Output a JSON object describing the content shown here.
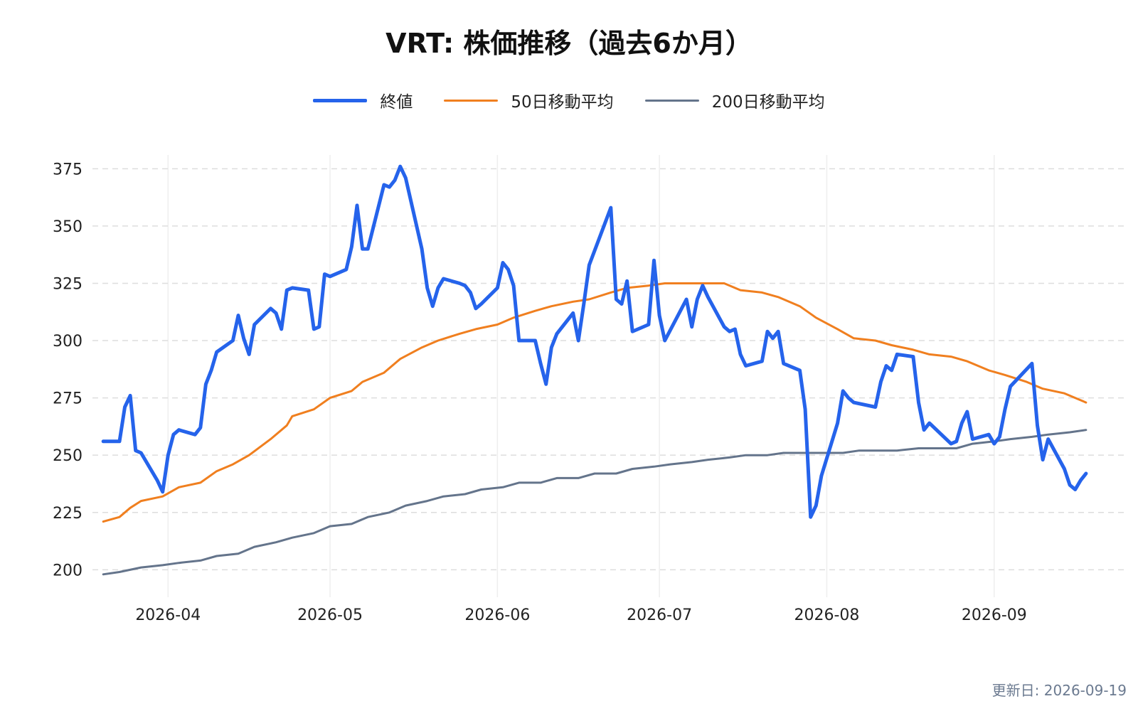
{
  "chart_data": {
    "type": "line",
    "title": "VRT: 株価推移（過去6か月）",
    "xlabel": "",
    "ylabel": "",
    "ylim": [
      188,
      381
    ],
    "yticks": [
      200,
      225,
      250,
      275,
      300,
      325,
      350,
      375
    ],
    "xlim": [
      "2026-03-18",
      "2026-09-25"
    ],
    "xticks": [
      "2026-04-01",
      "2026-05-01",
      "2026-06-01",
      "2026-07-01",
      "2026-08-01",
      "2026-09-01"
    ],
    "xtick_labels": [
      "2026-04",
      "2026-05",
      "2026-06",
      "2026-07",
      "2026-08",
      "2026-09"
    ],
    "grid": true,
    "legend_placement": "top-center",
    "series": [
      {
        "name": "終値",
        "color": "#2563eb",
        "width": 5,
        "points": [
          [
            "2026-03-20",
            256
          ],
          [
            "2026-03-23",
            256
          ],
          [
            "2026-03-24",
            271
          ],
          [
            "2026-03-25",
            276
          ],
          [
            "2026-03-26",
            252
          ],
          [
            "2026-03-27",
            251
          ],
          [
            "2026-03-30",
            239
          ],
          [
            "2026-03-31",
            234
          ],
          [
            "2026-04-01",
            250
          ],
          [
            "2026-04-02",
            259
          ],
          [
            "2026-04-03",
            261
          ],
          [
            "2026-04-06",
            259
          ],
          [
            "2026-04-07",
            262
          ],
          [
            "2026-04-08",
            281
          ],
          [
            "2026-04-09",
            287
          ],
          [
            "2026-04-10",
            295
          ],
          [
            "2026-04-13",
            300
          ],
          [
            "2026-04-14",
            311
          ],
          [
            "2026-04-15",
            301
          ],
          [
            "2026-04-16",
            294
          ],
          [
            "2026-04-17",
            307
          ],
          [
            "2026-04-20",
            314
          ],
          [
            "2026-04-21",
            312
          ],
          [
            "2026-04-22",
            305
          ],
          [
            "2026-04-23",
            322
          ],
          [
            "2026-04-24",
            323
          ],
          [
            "2026-04-27",
            322
          ],
          [
            "2026-04-28",
            305
          ],
          [
            "2026-04-29",
            306
          ],
          [
            "2026-04-30",
            329
          ],
          [
            "2026-05-01",
            328
          ],
          [
            "2026-05-04",
            331
          ],
          [
            "2026-05-05",
            341
          ],
          [
            "2026-05-06",
            359
          ],
          [
            "2026-05-07",
            340
          ],
          [
            "2026-05-08",
            340
          ],
          [
            "2026-05-11",
            368
          ],
          [
            "2026-05-12",
            367
          ],
          [
            "2026-05-13",
            370
          ],
          [
            "2026-05-14",
            376
          ],
          [
            "2026-05-15",
            371
          ],
          [
            "2026-05-18",
            340
          ],
          [
            "2026-05-19",
            323
          ],
          [
            "2026-05-20",
            315
          ],
          [
            "2026-05-21",
            323
          ],
          [
            "2026-05-22",
            327
          ],
          [
            "2026-05-25",
            325
          ],
          [
            "2026-05-26",
            324
          ],
          [
            "2026-05-27",
            321
          ],
          [
            "2026-05-28",
            314
          ],
          [
            "2026-05-29",
            316
          ],
          [
            "2026-06-01",
            323
          ],
          [
            "2026-06-02",
            334
          ],
          [
            "2026-06-03",
            331
          ],
          [
            "2026-06-04",
            324
          ],
          [
            "2026-06-05",
            300
          ],
          [
            "2026-06-08",
            300
          ],
          [
            "2026-06-09",
            290
          ],
          [
            "2026-06-10",
            281
          ],
          [
            "2026-06-11",
            297
          ],
          [
            "2026-06-12",
            303
          ],
          [
            "2026-06-15",
            312
          ],
          [
            "2026-06-16",
            300
          ],
          [
            "2026-06-17",
            316
          ],
          [
            "2026-06-18",
            333
          ],
          [
            "2026-06-22",
            358
          ],
          [
            "2026-06-23",
            318
          ],
          [
            "2026-06-24",
            316
          ],
          [
            "2026-06-25",
            326
          ],
          [
            "2026-06-26",
            304
          ],
          [
            "2026-06-29",
            307
          ],
          [
            "2026-06-30",
            335
          ],
          [
            "2026-07-01",
            311
          ],
          [
            "2026-07-02",
            300
          ],
          [
            "2026-07-06",
            318
          ],
          [
            "2026-07-07",
            306
          ],
          [
            "2026-07-08",
            318
          ],
          [
            "2026-07-09",
            324
          ],
          [
            "2026-07-10",
            319
          ],
          [
            "2026-07-13",
            306
          ],
          [
            "2026-07-14",
            304
          ],
          [
            "2026-07-15",
            305
          ],
          [
            "2026-07-16",
            294
          ],
          [
            "2026-07-17",
            289
          ],
          [
            "2026-07-20",
            291
          ],
          [
            "2026-07-21",
            304
          ],
          [
            "2026-07-22",
            301
          ],
          [
            "2026-07-23",
            304
          ],
          [
            "2026-07-24",
            290
          ],
          [
            "2026-07-27",
            287
          ],
          [
            "2026-07-28",
            270
          ],
          [
            "2026-07-29",
            223
          ],
          [
            "2026-07-30",
            228
          ],
          [
            "2026-07-31",
            241
          ],
          [
            "2026-08-03",
            264
          ],
          [
            "2026-08-04",
            278
          ],
          [
            "2026-08-05",
            275
          ],
          [
            "2026-08-06",
            273
          ],
          [
            "2026-08-10",
            271
          ],
          [
            "2026-08-11",
            282
          ],
          [
            "2026-08-12",
            289
          ],
          [
            "2026-08-13",
            287
          ],
          [
            "2026-08-14",
            294
          ],
          [
            "2026-08-17",
            293
          ],
          [
            "2026-08-18",
            273
          ],
          [
            "2026-08-19",
            261
          ],
          [
            "2026-08-20",
            264
          ],
          [
            "2026-08-24",
            255
          ],
          [
            "2026-08-25",
            256
          ],
          [
            "2026-08-26",
            264
          ],
          [
            "2026-08-27",
            269
          ],
          [
            "2026-08-28",
            257
          ],
          [
            "2026-08-31",
            259
          ],
          [
            "2026-09-01",
            255
          ],
          [
            "2026-09-02",
            258
          ],
          [
            "2026-09-03",
            270
          ],
          [
            "2026-09-04",
            280
          ],
          [
            "2026-09-08",
            290
          ],
          [
            "2026-09-09",
            263
          ],
          [
            "2026-09-10",
            248
          ],
          [
            "2026-09-11",
            257
          ],
          [
            "2026-09-14",
            244
          ],
          [
            "2026-09-15",
            237
          ],
          [
            "2026-09-16",
            235
          ],
          [
            "2026-09-17",
            239
          ],
          [
            "2026-09-18",
            242
          ]
        ]
      },
      {
        "name": "50日移動平均",
        "color": "#f07f1f",
        "width": 3,
        "points": [
          [
            "2026-03-20",
            221
          ],
          [
            "2026-03-23",
            223
          ],
          [
            "2026-03-25",
            227
          ],
          [
            "2026-03-27",
            230
          ],
          [
            "2026-03-31",
            232
          ],
          [
            "2026-04-03",
            236
          ],
          [
            "2026-04-07",
            238
          ],
          [
            "2026-04-10",
            243
          ],
          [
            "2026-04-13",
            246
          ],
          [
            "2026-04-16",
            250
          ],
          [
            "2026-04-20",
            257
          ],
          [
            "2026-04-23",
            263
          ],
          [
            "2026-04-24",
            267
          ],
          [
            "2026-04-28",
            270
          ],
          [
            "2026-05-01",
            275
          ],
          [
            "2026-05-05",
            278
          ],
          [
            "2026-05-07",
            282
          ],
          [
            "2026-05-11",
            286
          ],
          [
            "2026-05-14",
            292
          ],
          [
            "2026-05-18",
            297
          ],
          [
            "2026-05-21",
            300
          ],
          [
            "2026-05-25",
            303
          ],
          [
            "2026-05-28",
            305
          ],
          [
            "2026-06-01",
            307
          ],
          [
            "2026-06-04",
            310
          ],
          [
            "2026-06-08",
            313
          ],
          [
            "2026-06-11",
            315
          ],
          [
            "2026-06-15",
            317
          ],
          [
            "2026-06-18",
            318
          ],
          [
            "2026-06-22",
            321
          ],
          [
            "2026-06-25",
            323
          ],
          [
            "2026-06-29",
            324
          ],
          [
            "2026-07-02",
            325
          ],
          [
            "2026-07-06",
            325
          ],
          [
            "2026-07-09",
            325
          ],
          [
            "2026-07-13",
            325
          ],
          [
            "2026-07-16",
            322
          ],
          [
            "2026-07-20",
            321
          ],
          [
            "2026-07-23",
            319
          ],
          [
            "2026-07-27",
            315
          ],
          [
            "2026-07-30",
            310
          ],
          [
            "2026-08-03",
            305
          ],
          [
            "2026-08-06",
            301
          ],
          [
            "2026-08-10",
            300
          ],
          [
            "2026-08-13",
            298
          ],
          [
            "2026-08-17",
            296
          ],
          [
            "2026-08-20",
            294
          ],
          [
            "2026-08-24",
            293
          ],
          [
            "2026-08-27",
            291
          ],
          [
            "2026-08-31",
            287
          ],
          [
            "2026-09-03",
            285
          ],
          [
            "2026-09-07",
            282
          ],
          [
            "2026-09-10",
            279
          ],
          [
            "2026-09-14",
            277
          ],
          [
            "2026-09-18",
            273
          ]
        ]
      },
      {
        "name": "200日移動平均",
        "color": "#64748b",
        "width": 3,
        "points": [
          [
            "2026-03-20",
            198
          ],
          [
            "2026-03-23",
            199
          ],
          [
            "2026-03-27",
            201
          ],
          [
            "2026-03-31",
            202
          ],
          [
            "2026-04-03",
            203
          ],
          [
            "2026-04-07",
            204
          ],
          [
            "2026-04-10",
            206
          ],
          [
            "2026-04-14",
            207
          ],
          [
            "2026-04-17",
            210
          ],
          [
            "2026-04-21",
            212
          ],
          [
            "2026-04-24",
            214
          ],
          [
            "2026-04-28",
            216
          ],
          [
            "2026-05-01",
            219
          ],
          [
            "2026-05-05",
            220
          ],
          [
            "2026-05-08",
            223
          ],
          [
            "2026-05-12",
            225
          ],
          [
            "2026-05-15",
            228
          ],
          [
            "2026-05-19",
            230
          ],
          [
            "2026-05-22",
            232
          ],
          [
            "2026-05-26",
            233
          ],
          [
            "2026-05-29",
            235
          ],
          [
            "2026-06-02",
            236
          ],
          [
            "2026-06-05",
            238
          ],
          [
            "2026-06-09",
            238
          ],
          [
            "2026-06-12",
            240
          ],
          [
            "2026-06-16",
            240
          ],
          [
            "2026-06-19",
            242
          ],
          [
            "2026-06-23",
            242
          ],
          [
            "2026-06-26",
            244
          ],
          [
            "2026-06-30",
            245
          ],
          [
            "2026-07-03",
            246
          ],
          [
            "2026-07-07",
            247
          ],
          [
            "2026-07-10",
            248
          ],
          [
            "2026-07-14",
            249
          ],
          [
            "2026-07-17",
            250
          ],
          [
            "2026-07-21",
            250
          ],
          [
            "2026-07-24",
            251
          ],
          [
            "2026-07-28",
            251
          ],
          [
            "2026-07-31",
            251
          ],
          [
            "2026-08-04",
            251
          ],
          [
            "2026-08-07",
            252
          ],
          [
            "2026-08-11",
            252
          ],
          [
            "2026-08-14",
            252
          ],
          [
            "2026-08-18",
            253
          ],
          [
            "2026-08-21",
            253
          ],
          [
            "2026-08-25",
            253
          ],
          [
            "2026-08-28",
            255
          ],
          [
            "2026-09-01",
            256
          ],
          [
            "2026-09-04",
            257
          ],
          [
            "2026-09-08",
            258
          ],
          [
            "2026-09-11",
            259
          ],
          [
            "2026-09-15",
            260
          ],
          [
            "2026-09-18",
            261
          ]
        ]
      }
    ]
  },
  "footer": {
    "updated": "更新日: 2026-09-19"
  }
}
